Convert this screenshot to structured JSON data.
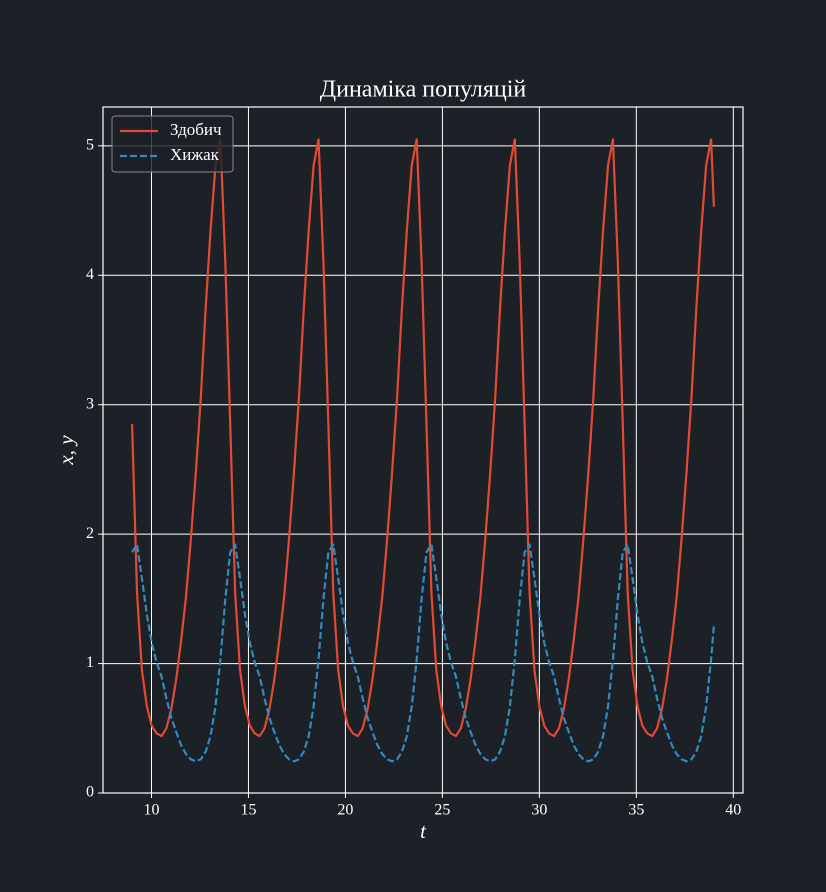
{
  "chart_data": {
    "type": "line",
    "title": "Динаміка популяцій",
    "xlabel": "t",
    "ylabel": "x, y",
    "x": [
      9,
      9.253,
      9.506,
      9.759,
      10.012,
      10.265,
      10.518,
      10.771,
      11.024,
      11.277,
      11.53,
      11.783,
      12.036,
      12.289,
      12.542,
      12.795,
      13.048,
      13.301,
      13.554,
      13.807,
      14.06,
      14.313,
      14.566,
      14.819,
      15.072,
      15.325,
      15.578,
      15.831,
      16.084,
      16.337,
      16.59,
      16.843,
      17.096,
      17.349,
      17.602,
      17.855,
      18.108,
      18.361,
      18.614,
      18.867,
      19.12,
      19.373,
      19.626,
      19.879,
      20.132,
      20.385,
      20.638,
      20.891,
      21.144,
      21.397,
      21.65,
      21.903,
      22.156,
      22.409,
      22.662,
      22.915,
      23.168,
      23.421,
      23.674,
      23.927,
      24.18,
      24.433,
      24.686,
      24.939,
      25.192,
      25.445,
      25.698,
      25.951,
      26.204,
      26.457,
      26.71,
      26.963,
      27.216,
      27.469,
      27.722,
      27.975,
      28.228,
      28.481,
      28.734,
      28.987,
      29.24,
      29.493,
      29.746,
      29.999,
      30.252,
      30.505,
      30.758,
      31.011,
      31.264,
      31.517,
      31.77,
      32.023,
      32.276,
      32.529,
      32.782,
      33.035,
      33.288,
      33.541,
      33.794,
      34.047,
      34.3,
      34.553,
      34.806,
      35.059,
      35.312,
      35.565,
      35.818,
      36.071,
      36.324,
      36.577,
      36.83,
      37.083,
      37.336,
      37.589,
      37.842,
      38.095,
      38.348,
      38.601,
      38.854,
      39
    ],
    "series": [
      {
        "name": "Здобич",
        "color": "#e24a33",
        "dash": "solid",
        "values": [
          2.85,
          1.55,
          0.95,
          0.67,
          0.52,
          0.46,
          0.44,
          0.5,
          0.65,
          0.88,
          1.18,
          1.52,
          1.97,
          2.48,
          3.05,
          3.75,
          4.35,
          4.85,
          5.05,
          4.1,
          2.85,
          1.55,
          0.95,
          0.67,
          0.52,
          0.46,
          0.44,
          0.5,
          0.65,
          0.88,
          1.18,
          1.52,
          1.97,
          2.48,
          3.05,
          3.75,
          4.35,
          4.85,
          5.05,
          4.1,
          2.85,
          1.55,
          0.95,
          0.67,
          0.52,
          0.46,
          0.44,
          0.5,
          0.65,
          0.88,
          1.18,
          1.52,
          1.97,
          2.48,
          3.05,
          3.75,
          4.35,
          4.85,
          5.05,
          4.1,
          2.85,
          1.55,
          0.95,
          0.67,
          0.52,
          0.46,
          0.44,
          0.5,
          0.65,
          0.88,
          1.18,
          1.52,
          1.97,
          2.48,
          3.05,
          3.75,
          4.35,
          4.85,
          5.05,
          4.1,
          2.85,
          1.55,
          0.95,
          0.67,
          0.52,
          0.46,
          0.44,
          0.5,
          0.65,
          0.88,
          1.18,
          1.52,
          1.97,
          2.48,
          3.05,
          3.75,
          4.35,
          4.85,
          5.05,
          4.1,
          2.85,
          1.55,
          0.95,
          0.67,
          0.52,
          0.46,
          0.44,
          0.5,
          0.65,
          0.88,
          1.18,
          1.52,
          1.97,
          2.48,
          3.05,
          3.75,
          4.35,
          4.85,
          5.05,
          4.53
        ]
      },
      {
        "name": "Хижак",
        "color": "#348abd",
        "dash": "dashed",
        "values": [
          1.86,
          1.92,
          1.66,
          1.38,
          1.16,
          1.01,
          0.9,
          0.73,
          0.58,
          0.47,
          0.37,
          0.3,
          0.26,
          0.245,
          0.26,
          0.32,
          0.44,
          0.67,
          1.03,
          1.5,
          1.86,
          1.92,
          1.66,
          1.38,
          1.16,
          1.01,
          0.9,
          0.73,
          0.58,
          0.47,
          0.37,
          0.3,
          0.26,
          0.245,
          0.26,
          0.32,
          0.44,
          0.67,
          1.03,
          1.5,
          1.86,
          1.92,
          1.66,
          1.38,
          1.16,
          1.01,
          0.9,
          0.73,
          0.58,
          0.47,
          0.37,
          0.3,
          0.26,
          0.245,
          0.26,
          0.32,
          0.44,
          0.67,
          1.03,
          1.5,
          1.86,
          1.92,
          1.66,
          1.38,
          1.16,
          1.01,
          0.9,
          0.73,
          0.58,
          0.47,
          0.37,
          0.3,
          0.26,
          0.245,
          0.26,
          0.32,
          0.44,
          0.67,
          1.03,
          1.5,
          1.86,
          1.92,
          1.66,
          1.38,
          1.16,
          1.01,
          0.9,
          0.73,
          0.58,
          0.47,
          0.37,
          0.3,
          0.26,
          0.245,
          0.26,
          0.32,
          0.44,
          0.67,
          1.03,
          1.5,
          1.86,
          1.92,
          1.66,
          1.38,
          1.16,
          1.01,
          0.9,
          0.73,
          0.58,
          0.47,
          0.37,
          0.3,
          0.26,
          0.245,
          0.26,
          0.32,
          0.44,
          0.67,
          1.03,
          1.3
        ]
      }
    ],
    "xlim": [
      7.5,
      40.5
    ],
    "xticks": [
      10,
      15,
      20,
      25,
      30,
      35,
      40
    ],
    "ylim": [
      0,
      5.3
    ],
    "yticks": [
      0,
      1,
      2,
      3,
      4,
      5
    ],
    "grid": true,
    "legend": "upper left"
  }
}
